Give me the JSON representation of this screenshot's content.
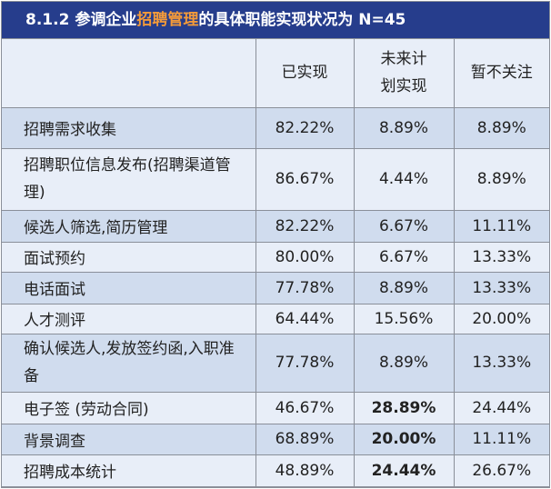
{
  "title": {
    "prefix": "8.1.2  参调企业",
    "highlight": "招聘管理",
    "suffix": "的具体职能实现状况为  N=45",
    "highlight_color": "#f39a3a",
    "bar_color": "#263d8c"
  },
  "columns": [
    "",
    "已实现",
    "未来计划实现",
    "暂不关注"
  ],
  "column_lines": {
    "c2a": "未来计",
    "c2b": "划实现"
  },
  "rows": [
    {
      "label": "招聘需求收集",
      "values": [
        "82.22%",
        "8.89%",
        "8.89%"
      ],
      "bold": []
    },
    {
      "label": "招聘职位信息发布(招聘渠道管理)",
      "values": [
        "86.67%",
        "4.44%",
        "8.89%"
      ],
      "bold": []
    },
    {
      "label": "候选人筛选,简历管理",
      "values": [
        "82.22%",
        "6.67%",
        "11.11%"
      ],
      "bold": []
    },
    {
      "label": "面试预约",
      "values": [
        "80.00%",
        "6.67%",
        "13.33%"
      ],
      "bold": []
    },
    {
      "label": "电话面试",
      "values": [
        "77.78%",
        "8.89%",
        "13.33%"
      ],
      "bold": []
    },
    {
      "label": "人才测评",
      "values": [
        "64.44%",
        "15.56%",
        "20.00%"
      ],
      "bold": []
    },
    {
      "label": "确认候选人,发放签约函,入职准备",
      "values": [
        "77.78%",
        "8.89%",
        "13.33%"
      ],
      "bold": []
    },
    {
      "label": "电子签 (劳动合同)",
      "values": [
        "46.67%",
        "28.89%",
        "24.44%"
      ],
      "bold": [
        1
      ]
    },
    {
      "label": "背景调查",
      "values": [
        "68.89%",
        "20.00%",
        "11.11%"
      ],
      "bold": [
        1
      ]
    },
    {
      "label": "招聘成本统计",
      "values": [
        "48.89%",
        "24.44%",
        "26.67%"
      ],
      "bold": [
        1
      ]
    }
  ]
}
